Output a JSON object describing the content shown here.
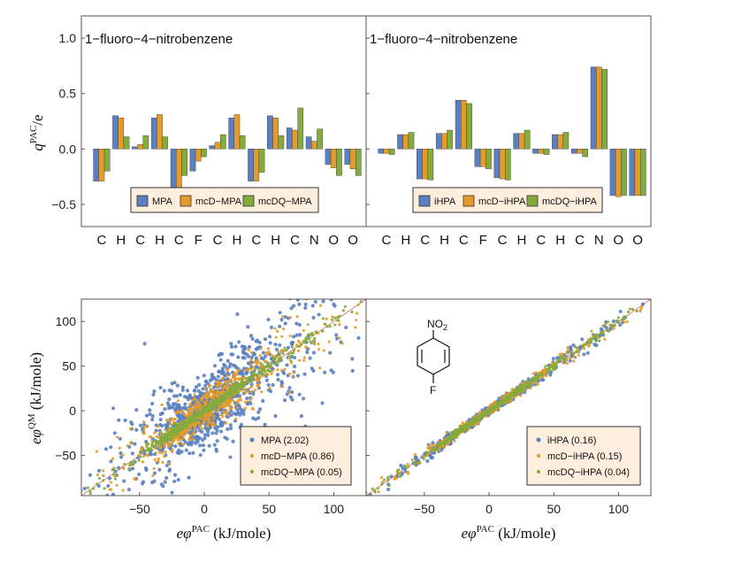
{
  "colors": {
    "blue": "#5b7fbf",
    "orange": "#e59b29",
    "green": "#84ab3c",
    "legend_bg": "#fdeedd",
    "ref_line": "#e06060"
  },
  "labels": {
    "top_ylabel_base": "q",
    "top_ylabel_sup": "PAC",
    "top_ylabel_tail": "/e",
    "bottom_ylabel_base": "eφ",
    "bottom_ylabel_sup": "QM",
    "bottom_ylabel_tail": " (kJ/mole)",
    "bottom_xlabel_base": "eφ",
    "bottom_xlabel_sup": "PAC",
    "bottom_xlabel_tail": " (kJ/mole)",
    "molecule_group": "NO",
    "molecule_sub": "2",
    "molecule_atom": "F"
  },
  "chart_data": [
    {
      "type": "bar",
      "title": "1−fluoro−4−nitrobenzene",
      "ylim": [
        -0.7,
        1.2
      ],
      "yticks": [
        "1.0",
        "0.5",
        "0.0",
        "−0.5"
      ],
      "ytick_values": [
        1.0,
        0.5,
        0.0,
        -0.5
      ],
      "categories": [
        "C",
        "H",
        "C",
        "H",
        "C",
        "F",
        "C",
        "H",
        "C",
        "H",
        "C",
        "N",
        "O",
        "O"
      ],
      "series": [
        {
          "name": "MPA",
          "values": [
            -0.29,
            0.3,
            0.02,
            0.28,
            -0.4,
            -0.2,
            0.03,
            0.28,
            -0.29,
            0.3,
            0.19,
            0.11,
            -0.14,
            -0.14
          ]
        },
        {
          "name": "mcD−MPA",
          "values": [
            -0.29,
            0.28,
            0.04,
            0.31,
            -0.37,
            -0.11,
            0.06,
            0.31,
            -0.29,
            0.28,
            0.17,
            0.07,
            -0.17,
            -0.18
          ]
        },
        {
          "name": "mcDQ−MPA",
          "values": [
            -0.2,
            0.11,
            0.12,
            0.11,
            -0.24,
            -0.07,
            0.13,
            0.12,
            -0.21,
            0.12,
            0.37,
            0.18,
            -0.24,
            -0.24
          ]
        }
      ],
      "legend_placement": "bottom-center"
    },
    {
      "type": "bar",
      "title": "1−fluoro−4−nitrobenzene",
      "ylim": [
        -0.7,
        1.2
      ],
      "categories": [
        "C",
        "H",
        "C",
        "H",
        "C",
        "F",
        "C",
        "H",
        "C",
        "H",
        "C",
        "N",
        "O",
        "O"
      ],
      "series": [
        {
          "name": "iHPA",
          "values": [
            -0.04,
            0.13,
            -0.27,
            0.14,
            0.44,
            -0.16,
            -0.26,
            0.14,
            -0.04,
            0.13,
            -0.04,
            0.74,
            -0.42,
            -0.42
          ]
        },
        {
          "name": "mcD−iHPA",
          "values": [
            -0.04,
            0.13,
            -0.27,
            0.14,
            0.44,
            -0.16,
            -0.27,
            0.14,
            -0.04,
            0.13,
            -0.04,
            0.74,
            -0.43,
            -0.42
          ]
        },
        {
          "name": "mcDQ−iHPA",
          "values": [
            -0.05,
            0.15,
            -0.28,
            0.17,
            0.41,
            -0.18,
            -0.28,
            0.17,
            -0.05,
            0.15,
            -0.07,
            0.72,
            -0.42,
            -0.42
          ]
        }
      ],
      "legend_placement": "bottom-center"
    },
    {
      "type": "scatter",
      "xlim": [
        -95,
        125
      ],
      "ylim": [
        -95,
        125
      ],
      "xticks": [
        "−50",
        "0",
        "50",
        "100"
      ],
      "xtick_values": [
        -50,
        0,
        50,
        100
      ],
      "yticks": [
        "100",
        "50",
        "0",
        "−50"
      ],
      "ytick_values": [
        100,
        50,
        0,
        -50
      ],
      "reference_line": "y = x",
      "legend_placement": "bottom-right",
      "series": [
        {
          "name": "MPA (2.02)",
          "spread": 18.0,
          "points": 900
        },
        {
          "name": "mcD−MPA (0.86)",
          "spread": 9.0,
          "points": 700
        },
        {
          "name": "mcDQ−MPA (0.05)",
          "spread": 1.8,
          "points": 600
        }
      ]
    },
    {
      "type": "scatter",
      "xlim": [
        -95,
        125
      ],
      "ylim": [
        -95,
        125
      ],
      "reference_line": "y = x",
      "legend_placement": "bottom-right",
      "series": [
        {
          "name": "iHPA (0.16)",
          "spread": 2.2,
          "points": 500
        },
        {
          "name": "mcD−iHPA (0.15)",
          "spread": 2.0,
          "points": 500
        },
        {
          "name": "mcDQ−iHPA (0.04)",
          "spread": 1.2,
          "points": 500
        }
      ]
    }
  ]
}
